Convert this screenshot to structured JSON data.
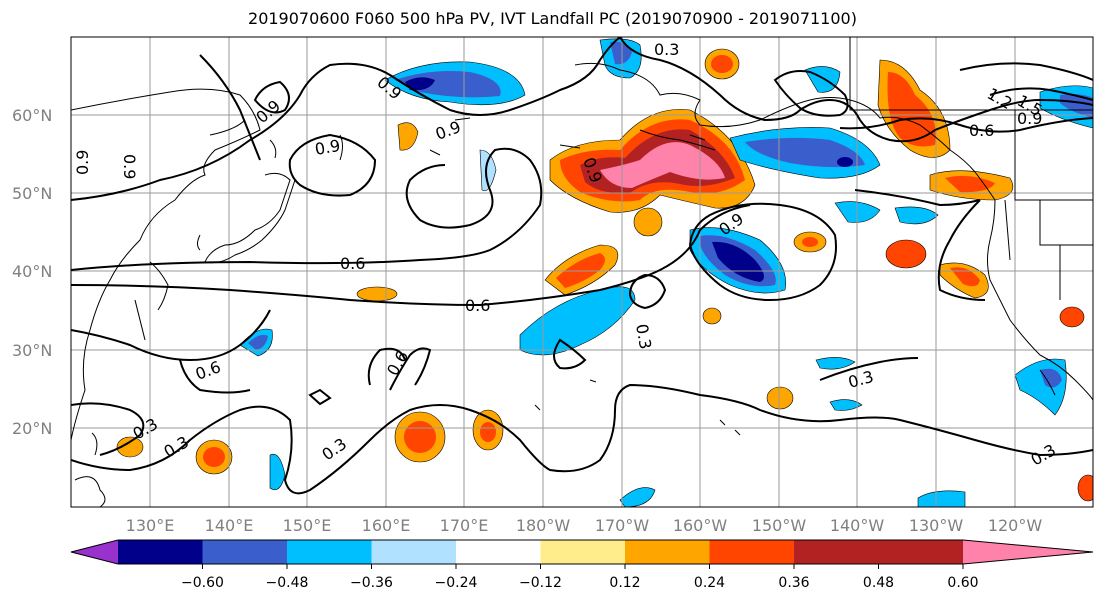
{
  "title": "2019070600 F060 500 hPa PV, IVT Landfall PC (2019070900 - 2019071100)",
  "lat_labels": [
    "60°N",
    "50°N",
    "40°N",
    "30°N",
    "20°N"
  ],
  "lon_labels": [
    "130°E",
    "140°E",
    "150°E",
    "160°E",
    "170°E",
    "180°W",
    "170°W",
    "160°W",
    "150°W",
    "140°W",
    "130°W",
    "120°W"
  ],
  "contour_labels": [
    "0.9",
    "0.9",
    "0.9",
    "0.9",
    "0.9",
    "0.9",
    "0.9",
    "0.9",
    "0.6",
    "0.6",
    "0.6",
    "0.6",
    "0.6",
    "0.3",
    "0.3",
    "0.3",
    "0.3",
    "0.3",
    "0.3",
    "0.3",
    "1.2",
    "1.5"
  ],
  "colorbar": {
    "colors": [
      "#9932cc",
      "#00008b",
      "#3a5fcd",
      "#00bfff",
      "#b0e2ff",
      "#ffffff",
      "#ffec8b",
      "#ffa500",
      "#ff4500",
      "#b22222",
      "#ff82ab"
    ],
    "tick_labels": [
      "−0.60",
      "−0.48",
      "−0.36",
      "−0.24",
      "−0.12",
      "0.12",
      "0.24",
      "0.36",
      "0.48",
      "0.60"
    ]
  },
  "anomaly_levels": {
    "neg_light": "#b0e2ff",
    "neg1": "#00bfff",
    "neg2": "#3a5fcd",
    "neg3": "#00008b",
    "pos1": "#ffec8b",
    "pos2": "#ffa500",
    "pos3": "#ff4500",
    "pos4": "#b22222",
    "pos5": "#ff82ab"
  }
}
